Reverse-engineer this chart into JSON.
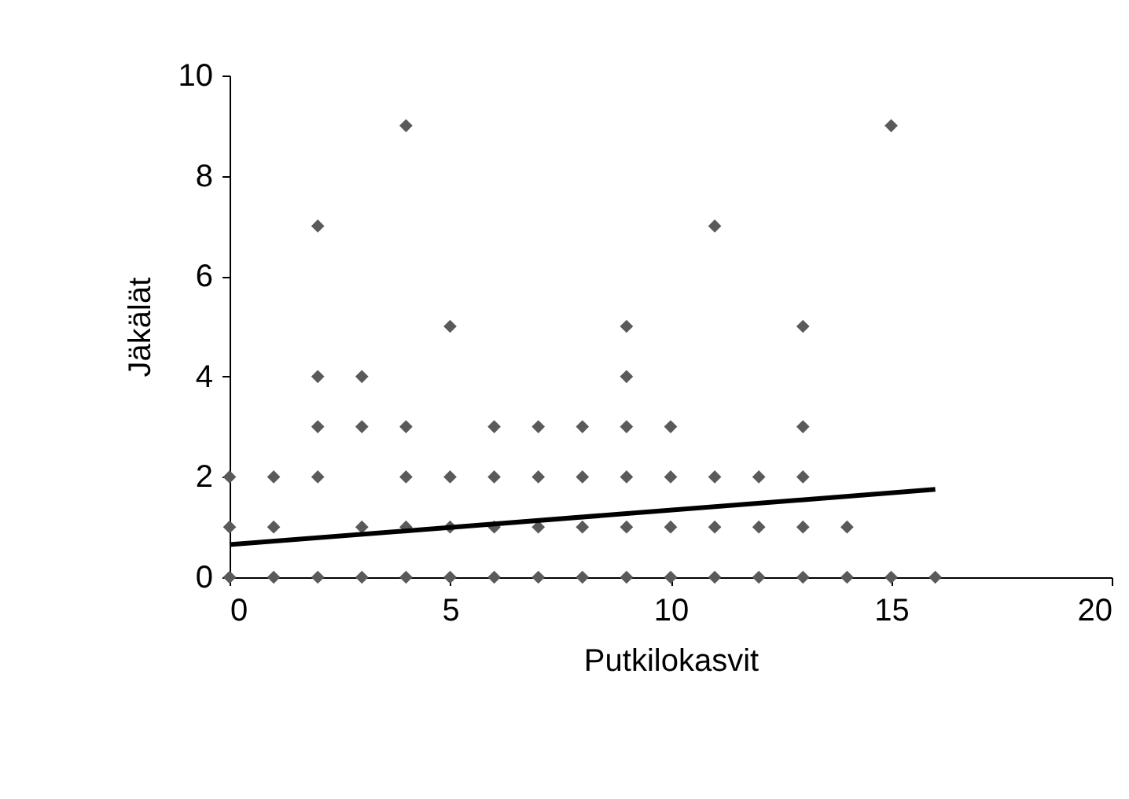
{
  "chart_data": {
    "type": "scatter",
    "xlabel": "Putkilokasvit",
    "ylabel": "Jäkälät",
    "xlim": [
      0,
      20
    ],
    "xticks": [
      0,
      5,
      10,
      15,
      20
    ],
    "ylim": [
      0,
      10
    ],
    "yticks": [
      0,
      2,
      4,
      6,
      8,
      10
    ],
    "grid": false,
    "legend": false,
    "marker": "diamond",
    "series": [
      {
        "color": "#5a5a5a",
        "x": [
          0,
          0,
          0,
          1,
          1,
          1,
          2,
          2,
          2,
          2,
          2,
          3,
          3,
          3,
          3,
          4,
          4,
          4,
          4,
          4,
          5,
          5,
          5,
          5,
          6,
          6,
          6,
          6,
          7,
          7,
          7,
          7,
          8,
          8,
          8,
          8,
          9,
          9,
          9,
          9,
          9,
          9,
          10,
          10,
          10,
          10,
          11,
          11,
          11,
          11,
          12,
          12,
          12,
          13,
          13,
          13,
          13,
          13,
          14,
          14,
          15,
          15,
          16
        ],
        "values": [
          0,
          1,
          2,
          0,
          1,
          2,
          0,
          2,
          3,
          4,
          7,
          0,
          1,
          3,
          4,
          0,
          1,
          2,
          3,
          9,
          0,
          1,
          2,
          5,
          0,
          1,
          2,
          3,
          0,
          1,
          2,
          3,
          0,
          1,
          2,
          3,
          0,
          1,
          2,
          3,
          4,
          5,
          0,
          1,
          2,
          3,
          0,
          1,
          2,
          7,
          0,
          1,
          2,
          0,
          1,
          2,
          3,
          5,
          0,
          1,
          0,
          9,
          0
        ]
      },
      {
        "type": "line",
        "color": "#000000",
        "marker": "none",
        "line_style": "solid",
        "x": [
          0,
          16
        ],
        "values": [
          0.65,
          1.75
        ]
      }
    ]
  }
}
